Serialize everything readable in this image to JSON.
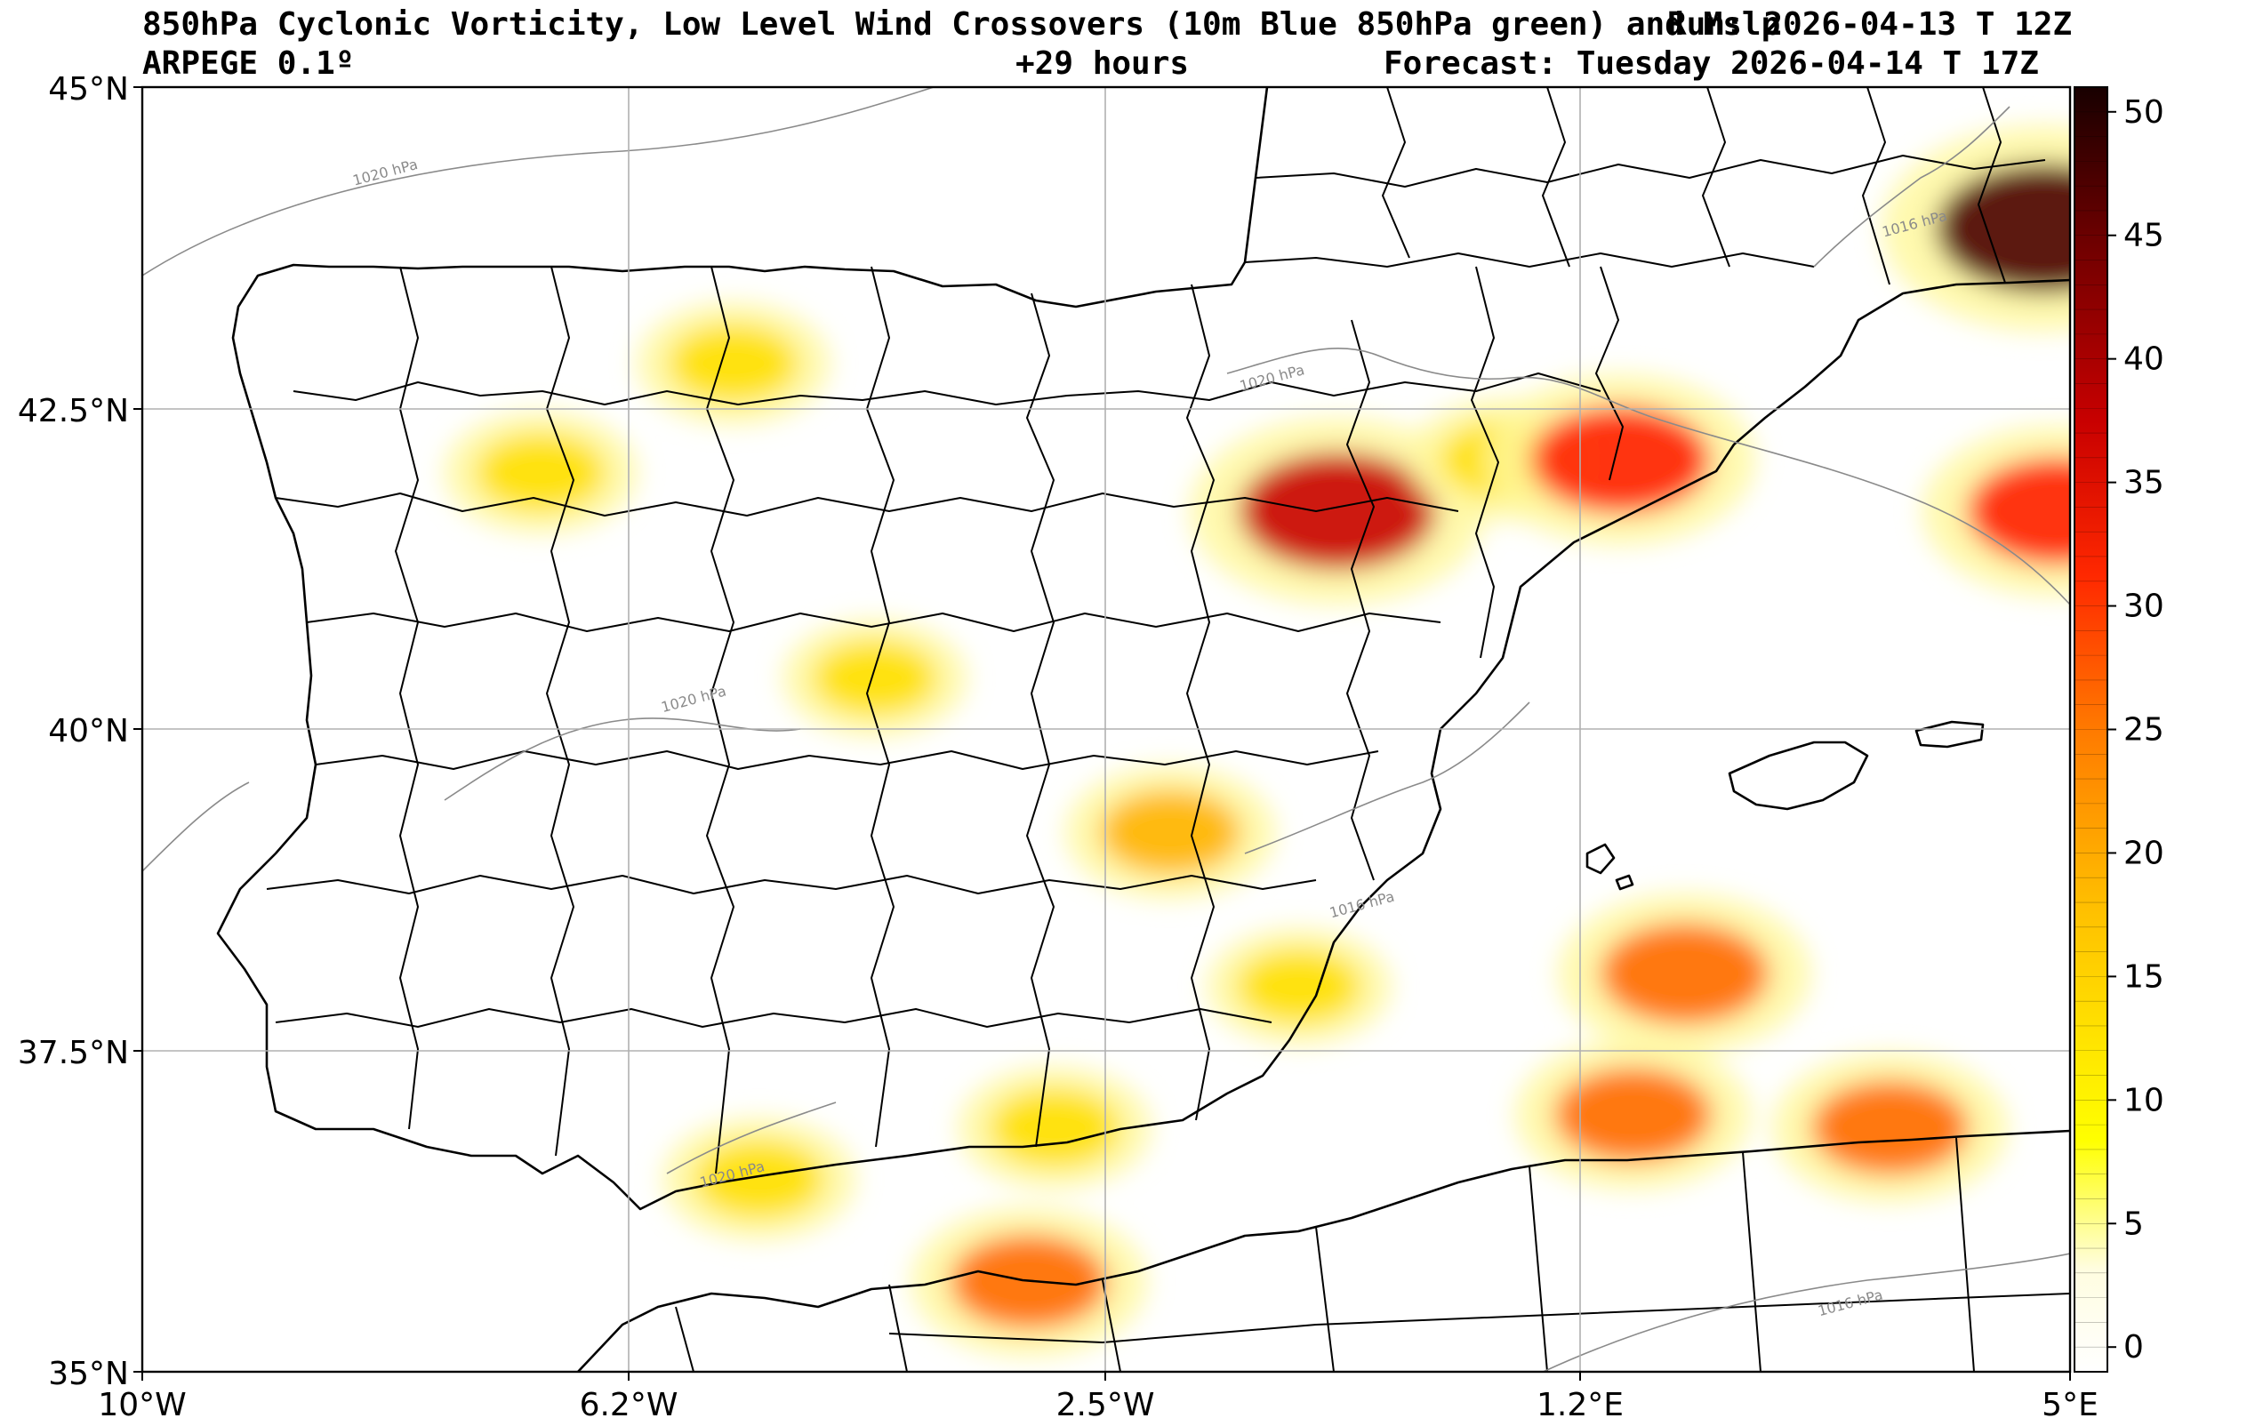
{
  "header": {
    "title_line": "850hPa Cyclonic Vorticity, Low Level Wind Crossovers (10m Blue 850hPa green) and Mslp",
    "run_line": "Run: 2026-04-13 T 12Z",
    "model": "ARPEGE 0.1º",
    "lead": "+29 hours",
    "forecast": "Forecast: Tuesday 2026-04-14 T 17Z"
  },
  "axes": {
    "lat_labels": [
      "45°N",
      "42.5°N",
      "40°N",
      "37.5°N",
      "35°N"
    ],
    "lon_labels": [
      "10°W",
      "6.2°W",
      "2.5°W",
      "1.2°E",
      "5°E"
    ],
    "lat_values": [
      45,
      42.5,
      40,
      37.5,
      35
    ],
    "lon_values": [
      -10,
      -6.2,
      -2.5,
      1.2,
      5
    ],
    "extent": {
      "lon": [
        -10,
        5
      ],
      "lat": [
        35,
        45
      ]
    },
    "grid": true
  },
  "colorbar": {
    "ticks": [
      "50",
      "45",
      "40",
      "35",
      "30",
      "25",
      "20",
      "15",
      "10",
      "5",
      "0"
    ],
    "values": [
      50,
      45,
      40,
      35,
      30,
      25,
      20,
      15,
      10,
      5,
      0
    ],
    "range": [
      -1,
      51
    ],
    "colors": [
      "#ffffff",
      "#fff59a",
      "#ffff00",
      "#ffc800",
      "#ff9a00",
      "#ff5a00",
      "#ff1a00",
      "#c80000",
      "#7a0000",
      "#1a0000"
    ]
  },
  "isobars": [
    {
      "label": "1020 hPa",
      "lon": -8.1,
      "lat": 44.3
    },
    {
      "label": "1020 hPa",
      "lon": -1.2,
      "lat": 42.7
    },
    {
      "label": "1016 hPa",
      "lon": 3.8,
      "lat": 43.9
    },
    {
      "label": "1020 hPa",
      "lon": -5.7,
      "lat": 40.2
    },
    {
      "label": "1016 hPa",
      "lon": -0.5,
      "lat": 38.6
    },
    {
      "label": "1020 hPa",
      "lon": -5.4,
      "lat": 36.5
    },
    {
      "label": "1016 hPa",
      "lon": 3.3,
      "lat": 35.5
    }
  ],
  "vorticity_blobs": [
    {
      "lon": -5.4,
      "lat": 42.85,
      "value": 14
    },
    {
      "lon": -6.9,
      "lat": 42.0,
      "value": 14
    },
    {
      "lon": -0.7,
      "lat": 41.7,
      "value": 38
    },
    {
      "lon": 0.6,
      "lat": 42.1,
      "value": 14
    },
    {
      "lon": 1.5,
      "lat": 42.1,
      "value": 32
    },
    {
      "lon": 4.8,
      "lat": 43.9,
      "value": 45
    },
    {
      "lon": 4.9,
      "lat": 41.7,
      "value": 32
    },
    {
      "lon": 2.0,
      "lat": 38.1,
      "value": 28
    },
    {
      "lon": 1.6,
      "lat": 37.0,
      "value": 24
    },
    {
      "lon": 3.6,
      "lat": 36.9,
      "value": 24
    },
    {
      "lon": -3.1,
      "lat": 35.7,
      "value": 24
    },
    {
      "lon": -2.0,
      "lat": 39.2,
      "value": 18
    },
    {
      "lon": -2.9,
      "lat": 36.9,
      "value": 14
    },
    {
      "lon": -5.2,
      "lat": 36.5,
      "value": 14
    },
    {
      "lon": -4.3,
      "lat": 40.4,
      "value": 12
    },
    {
      "lon": -1.0,
      "lat": 38.0,
      "value": 12
    }
  ]
}
